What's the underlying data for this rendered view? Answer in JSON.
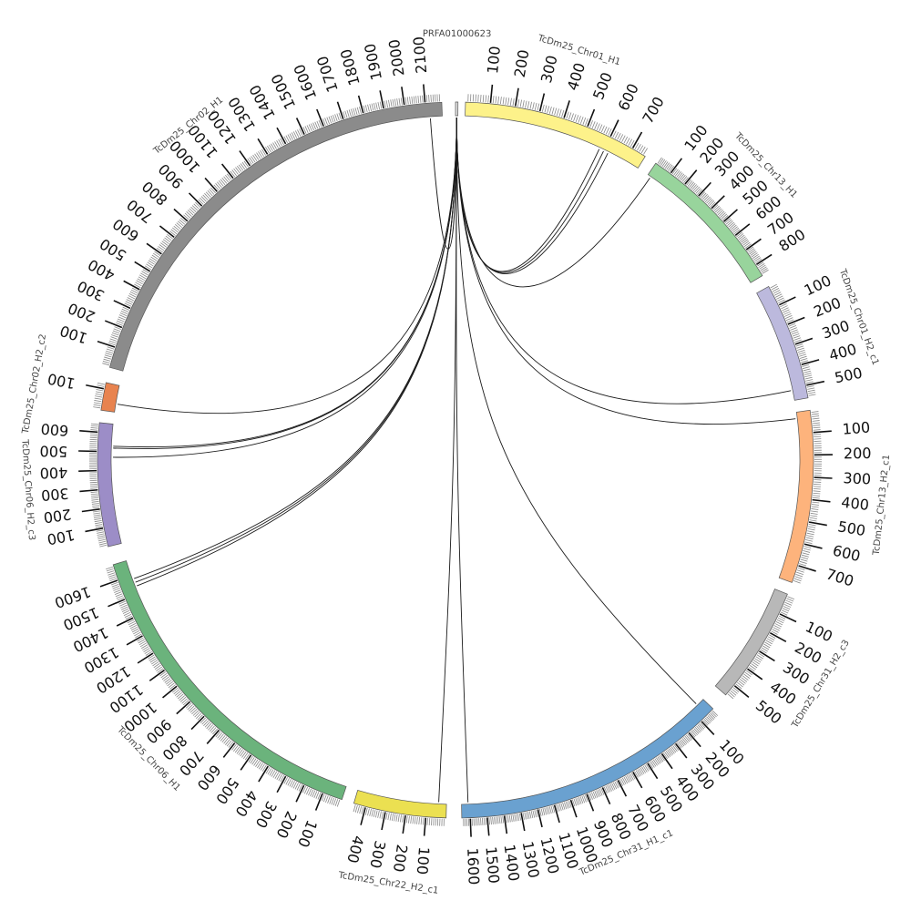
{
  "diagram": {
    "type": "circos",
    "segments": [
      {
        "id": "PRFA01000623",
        "name": "PRFA01000623",
        "start_deg": 0.0,
        "end_deg": 0.4,
        "length": 1,
        "color": "#e0e0e0",
        "ticks": []
      },
      {
        "id": "chr01_h1",
        "name": "TcDm25_Chr01_H1",
        "start_deg": 1.6,
        "end_deg": 32.0,
        "length": 760,
        "color": "#fdf28a",
        "ticks": [
          100,
          200,
          300,
          400,
          500,
          600,
          700
        ]
      },
      {
        "id": "chr13_h1",
        "name": "TcDm25_Chr13_H1",
        "start_deg": 34.0,
        "end_deg": 59.0,
        "length": 870,
        "color": "#98d49c",
        "ticks": [
          100,
          200,
          300,
          400,
          500,
          600,
          700,
          800
        ]
      },
      {
        "id": "chr01_h2_c1",
        "name": "TcDm25_Chr01_H2_c1",
        "start_deg": 61.0,
        "end_deg": 80.0,
        "length": 560,
        "color": "#bcb9dd",
        "ticks": [
          100,
          200,
          300,
          400,
          500
        ]
      },
      {
        "id": "chr13_h2_c1",
        "name": "TcDm25_Chr13_H2_c1",
        "start_deg": 82.0,
        "end_deg": 110.0,
        "length": 780,
        "color": "#fdb37c",
        "ticks": [
          100,
          200,
          300,
          400,
          500,
          600,
          700
        ]
      },
      {
        "id": "chr31_h2_c3",
        "name": "TcDm25_Chr31_H2_c3",
        "start_deg": 112.0,
        "end_deg": 131.0,
        "length": 560,
        "color": "#b8b8b8",
        "ticks": [
          100,
          200,
          300,
          400,
          500
        ]
      },
      {
        "id": "chr31_h1_c1",
        "name": "TcDm25_Chr31_H1_c1",
        "start_deg": 134.0,
        "end_deg": 179.0,
        "length": 1650,
        "color": "#6aa1d0",
        "ticks": [
          100,
          200,
          300,
          400,
          500,
          600,
          700,
          800,
          900,
          1000,
          1100,
          1200,
          1300,
          1400,
          1500,
          1600
        ],
        "reverse": false
      },
      {
        "id": "chr22_h2_c1",
        "name": "TcDm25_Chr22_H2_c1",
        "start_deg": 181.5,
        "end_deg": 196.5,
        "length": 460,
        "color": "#ebe051",
        "ticks": [
          100,
          200,
          300,
          400
        ]
      },
      {
        "id": "chr06_h1",
        "name": "TcDm25_Chr06_H1",
        "start_deg": 198.5,
        "end_deg": 253.0,
        "length": 1680,
        "color": "#6bb37c",
        "ticks": [
          100,
          200,
          300,
          400,
          500,
          600,
          700,
          800,
          900,
          1000,
          1100,
          1200,
          1300,
          1400,
          1500,
          1600
        ]
      },
      {
        "id": "chr06_h2_c3",
        "name": "TcDm25_Chr06_H2_c3",
        "start_deg": 256.0,
        "end_deg": 276.0,
        "length": 650,
        "color": "#9c8dc7",
        "ticks": [
          100,
          200,
          300,
          400,
          500,
          600
        ]
      },
      {
        "id": "chr02_h2_c2",
        "name": "TcDm25_Chr02_H2_c2",
        "start_deg": 278.0,
        "end_deg": 282.5,
        "length": 130,
        "color": "#e8834f",
        "ticks": [
          100
        ]
      },
      {
        "id": "chr02_h1",
        "name": "TcDm25_Chr02_H1",
        "start_deg": 285.0,
        "end_deg": 357.8,
        "length": 2180,
        "color": "#8b8b8b",
        "ticks": [
          100,
          200,
          300,
          400,
          500,
          600,
          700,
          800,
          900,
          1000,
          1100,
          1200,
          1300,
          1400,
          1500,
          1600,
          1700,
          1800,
          1900,
          2000,
          2100
        ]
      }
    ],
    "links": [
      {
        "from": "PRFA01000623",
        "to_segment": "chr01_h1",
        "to_pos": 580
      },
      {
        "from": "PRFA01000623",
        "to_segment": "chr01_h1",
        "to_pos": 600
      },
      {
        "from": "PRFA01000623",
        "to_segment": "chr01_h1",
        "to_pos": 620
      },
      {
        "from": "PRFA01000623",
        "to_segment": "chr13_h1",
        "to_pos": 20
      },
      {
        "from": "PRFA01000623",
        "to_segment": "chr01_h2_c1",
        "to_pos": 510
      },
      {
        "from": "PRFA01000623",
        "to_segment": "chr13_h2_c1",
        "to_pos": 30
      },
      {
        "from": "PRFA01000623",
        "to_segment": "chr31_h1_c1",
        "to_pos": 50
      },
      {
        "from": "PRFA01000623",
        "to_segment": "chr31_h1_c1",
        "to_pos": 1610
      },
      {
        "from": "PRFA01000623",
        "to_segment": "chr22_h2_c1",
        "to_pos": 40
      },
      {
        "from": "PRFA01000623",
        "to_segment": "chr06_h1",
        "to_pos": 1540
      },
      {
        "from": "PRFA01000623",
        "to_segment": "chr06_h1",
        "to_pos": 1560
      },
      {
        "from": "PRFA01000623",
        "to_segment": "chr06_h1",
        "to_pos": 1580
      },
      {
        "from": "PRFA01000623",
        "to_segment": "chr06_h2_c3",
        "to_pos": 470
      },
      {
        "from": "PRFA01000623",
        "to_segment": "chr06_h2_c3",
        "to_pos": 520
      },
      {
        "from": "PRFA01000623",
        "to_segment": "chr06_h2_c3",
        "to_pos": 530
      },
      {
        "from": "PRFA01000623",
        "to_segment": "chr02_h2_c2",
        "to_pos": 40
      },
      {
        "from": "PRFA01000623",
        "to_segment": "chr02_h1",
        "to_pos": 2120
      }
    ]
  }
}
